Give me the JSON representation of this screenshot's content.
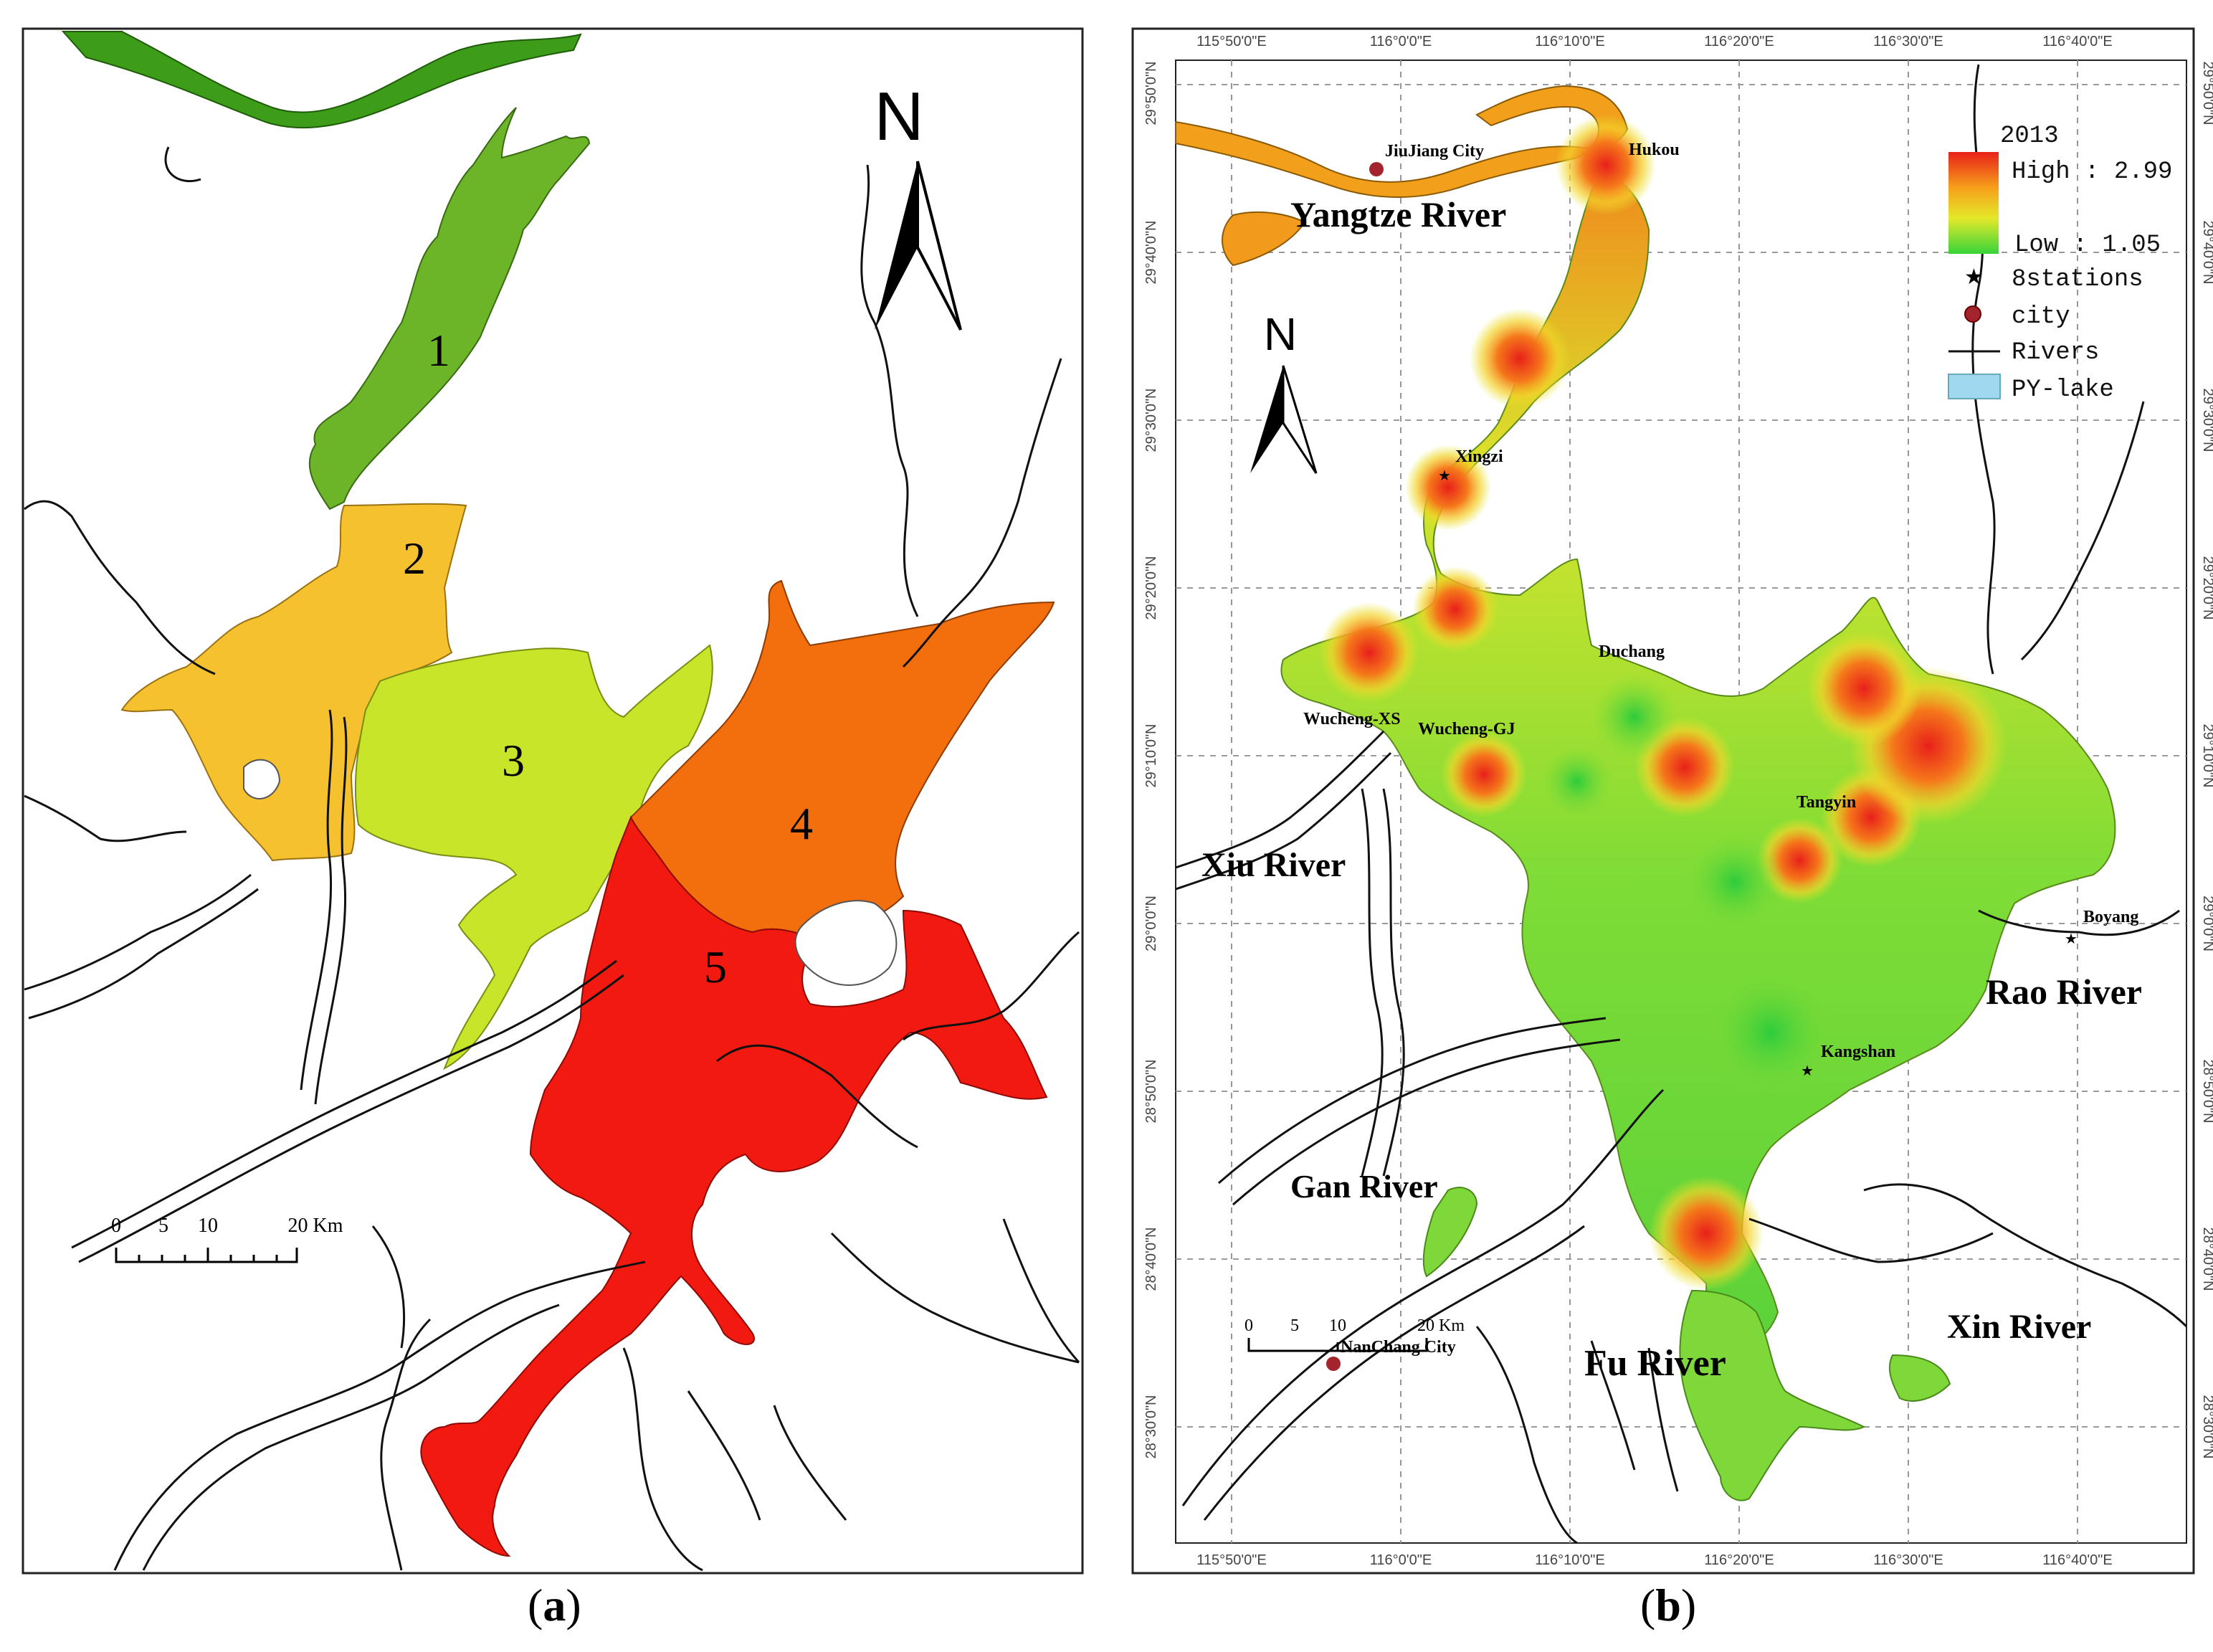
{
  "figure": {
    "panel_a_caption": "a",
    "panel_b_caption": "b"
  },
  "panel_a": {
    "north_label": "N",
    "zones": [
      {
        "id": "1",
        "color": "#6db528"
      },
      {
        "id": "2",
        "color": "#f6c12f"
      },
      {
        "id": "3",
        "color": "#c8e52a"
      },
      {
        "id": "4",
        "color": "#f36f0e"
      },
      {
        "id": "5",
        "color": "#f21a10"
      }
    ],
    "river_color": "#3d9d18",
    "scale_labels": [
      "0",
      "5",
      "10",
      "20 Km"
    ]
  },
  "panel_b": {
    "north_label": "N",
    "legend": {
      "year": "2013",
      "high": "High : 2.99",
      "low": "Low : 1.05",
      "stations": "8stations",
      "city": "city",
      "rivers": "Rivers",
      "lake": "PY-lake",
      "lake_color": "#9fd8ef",
      "city_color": "#a3242d"
    },
    "top_ticks": [
      "115°50'0\"E",
      "116°0'0\"E",
      "116°10'0\"E",
      "116°20'0\"E",
      "116°30'0\"E",
      "116°40'0\"E"
    ],
    "side_ticks": [
      "29°50'0\"N",
      "29°40'0\"N",
      "29°30'0\"N",
      "29°20'0\"N",
      "29°10'0\"N",
      "29°0'0\"N",
      "28°50'0\"N",
      "28°40'0\"N",
      "28°30'0\"N"
    ],
    "rivers": [
      "Yangtze River",
      "Xiu River",
      "Rao River",
      "Gan River",
      "Fu River",
      "Xin River"
    ],
    "places": [
      "JiuJiang City",
      "Hukou",
      "Xingzi",
      "Duchang",
      "Wucheng-XS",
      "Wucheng-GJ",
      "Tangyin",
      "Boyang",
      "Kangshan",
      "NanChang City"
    ],
    "scale_labels": [
      "0",
      "5",
      "10",
      "20 Km"
    ],
    "gradient": {
      "high": "#e8201a",
      "mid_high": "#f7a01a",
      "mid": "#e4e82a",
      "low": "#37d43a"
    }
  }
}
